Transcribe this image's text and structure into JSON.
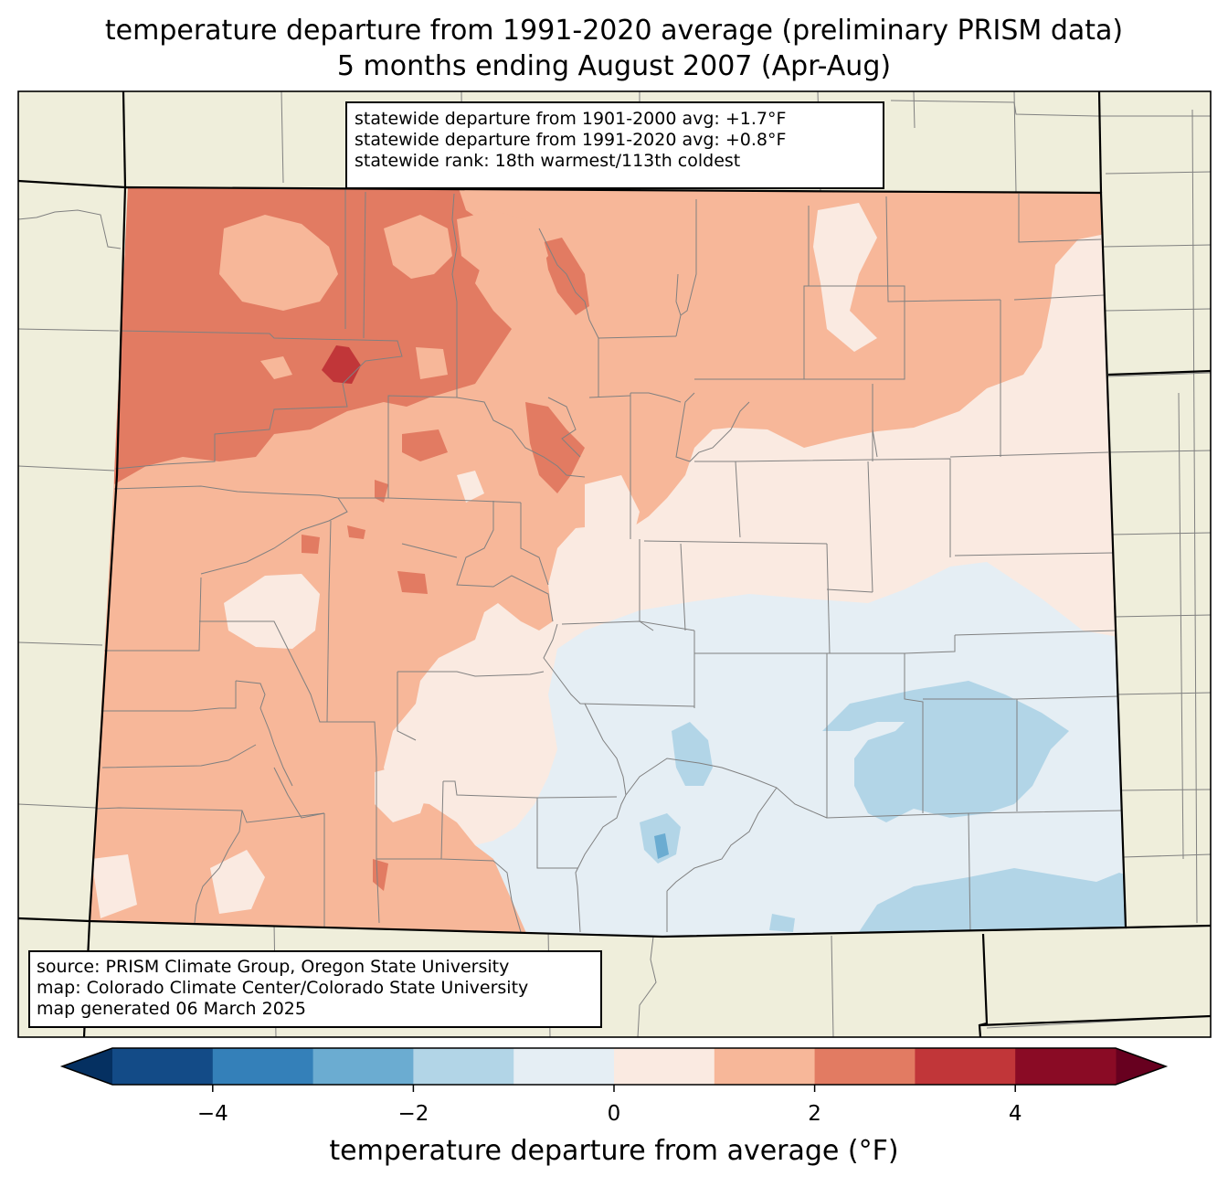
{
  "title": {
    "line1": "temperature departure from 1991-2020 average (preliminary PRISM data)",
    "line2": "5 months ending August 2007 (Apr-Aug)"
  },
  "stats_box": {
    "line1": "statewide departure from 1901-2000 avg: +1.7°F",
    "line2": "statewide departure from 1991-2020 avg: +0.8°F",
    "line3": "statewide rank: 18th warmest/113th coldest"
  },
  "source_box": {
    "line1": "source: PRISM Climate Group, Oregon State University",
    "line2": "map: Colorado Climate Center/Colorado State University",
    "line3": "map generated 06 March 2025"
  },
  "colorbar": {
    "label": "temperature departure from average (°F)",
    "boundaries": [
      -5,
      -4,
      -3,
      -2,
      -1,
      0,
      1,
      2,
      3,
      4,
      5
    ],
    "tick_values": [
      -4,
      -2,
      0,
      2,
      4
    ],
    "tick_labels": [
      "−4",
      "−2",
      "0",
      "2",
      "4"
    ],
    "colors": [
      "#134b87",
      "#3480b9",
      "#6bacd1",
      "#b2d5e7",
      "#e5eef4",
      "#faeae1",
      "#f7b799",
      "#e27b62",
      "#c13639",
      "#8a0b25"
    ],
    "under_color": "#053061",
    "over_color": "#67001f"
  },
  "map_colors": {
    "land": "#efeedb",
    "county_lines": "#808080",
    "state_lines": "#000000"
  }
}
